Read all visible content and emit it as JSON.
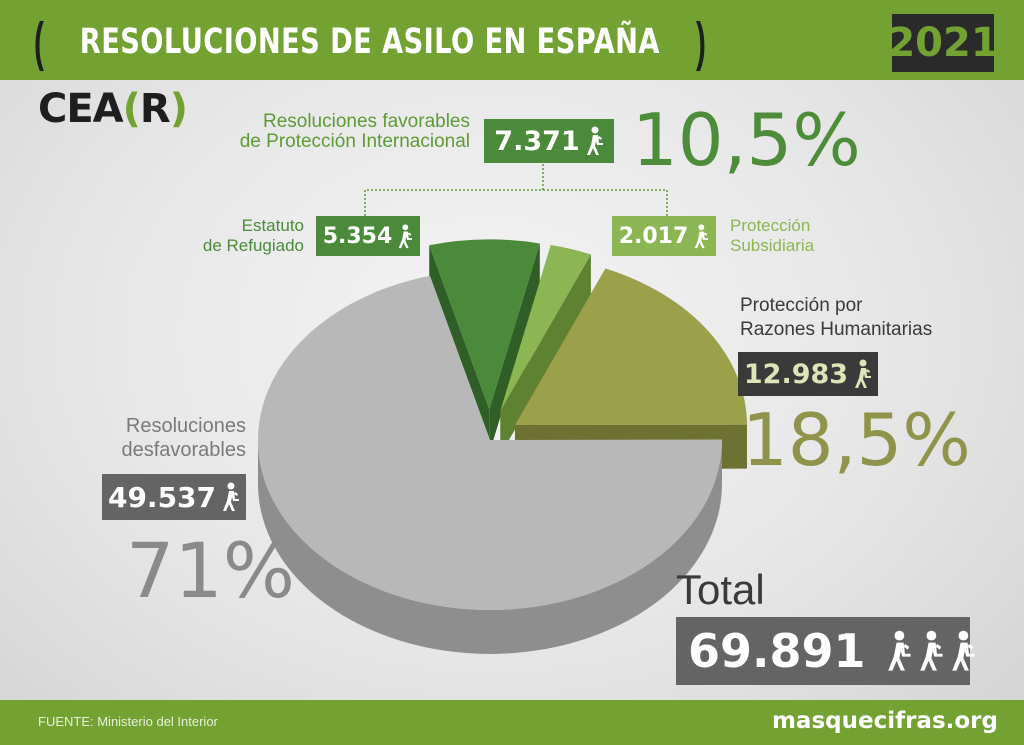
{
  "header": {
    "bracket_open": "(",
    "title": "RESOLUCIONES DE ASILO EN ESPAÑA",
    "bracket_close": ")",
    "year": "2021"
  },
  "logo": {
    "pre": "CEA",
    "open": "(",
    "mid": "R",
    "close": ")"
  },
  "labels": {
    "favorables": "Resoluciones favorables de Protección Internacional",
    "favorables_l1": "Resoluciones favorables",
    "favorables_l2": "de Protección Internacional",
    "favorables_value": "7.371",
    "favorables_pct": "10,5%",
    "refugiado_l1": "Estatuto",
    "refugiado_l2": "de Refugiado",
    "refugiado_value": "5.354",
    "subsidiaria_l1": "Protección",
    "subsidiaria_l2": "Subsidiaria",
    "subsidiaria_value": "2.017",
    "humanitarias_l1": "Protección por",
    "humanitarias_l2": "Razones Humanitarias",
    "humanitarias_value": "12.983",
    "humanitarias_pct": "18,5%",
    "desfavorables_l1": "Resoluciones",
    "desfavorables_l2": "desfavorables",
    "desfavorables_value": "49.537",
    "desfavorables_pct": "71%",
    "total_label": "Total",
    "total_value": "69.891"
  },
  "footer": {
    "source": "FUENTE: Ministerio del Interior",
    "site": "masquecifras.org"
  },
  "colors": {
    "brand_green": "#73a233",
    "dark_green": "#4a8a3a",
    "light_green": "#8bb653",
    "olive": "#9ba14a",
    "grey": "#b8b8b8",
    "dark_grey": "#646464"
  },
  "chart_data": {
    "type": "pie",
    "title": "RESOLUCIONES DE ASILO EN ESPAÑA",
    "categories": [
      "Estatuto de Refugiado",
      "Protección Subsidiaria",
      "Protección por Razones Humanitarias",
      "Resoluciones desfavorables"
    ],
    "values": [
      5354,
      2017,
      12983,
      49537
    ],
    "percent_labels": {
      "Resoluciones favorables de Protección Internacional": "10,5%",
      "Protección por Razones Humanitarias": "18,5%",
      "Resoluciones desfavorables": "71%"
    },
    "total": 69891,
    "colors": [
      "#4a8a3a",
      "#8bb653",
      "#9ba14a",
      "#b8b8b8"
    ],
    "side_colors": [
      "#2f5f27",
      "#5e8232",
      "#6d7232",
      "#8e8e8e"
    ]
  }
}
